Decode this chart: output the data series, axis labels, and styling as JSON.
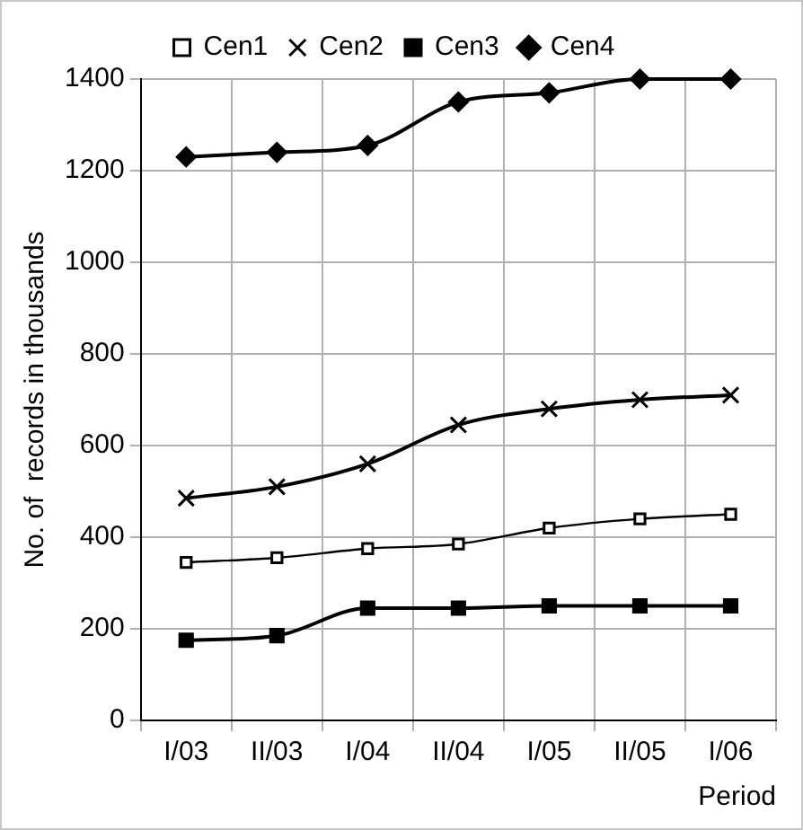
{
  "chart_data": {
    "type": "line",
    "xlabel": "Period",
    "ylabel": "No. of  records in thousands",
    "categories": [
      "I/03",
      "II/03",
      "I/04",
      "II/04",
      "I/05",
      "II/05",
      "I/06"
    ],
    "series": [
      {
        "name": "Cen1",
        "color": "#000000",
        "marker": "square",
        "values": [
          345,
          355,
          375,
          385,
          420,
          440,
          450
        ]
      },
      {
        "name": "Cen2",
        "color": "#000000",
        "marker": "cross",
        "values": [
          485,
          510,
          560,
          645,
          680,
          700,
          710
        ]
      },
      {
        "name": "Cen3",
        "color": "#000000",
        "marker": "square",
        "values": [
          175,
          185,
          245,
          245,
          250,
          250,
          250
        ]
      },
      {
        "name": "Cen4",
        "color": "#000000",
        "marker": "diamond",
        "values": [
          1230,
          1240,
          1255,
          1350,
          1370,
          1400,
          1400
        ]
      }
    ],
    "ylim": [
      0,
      1400
    ],
    "yticks": [
      0,
      200,
      400,
      600,
      800,
      1000,
      1200,
      1400
    ],
    "grid": true,
    "legend": "top",
    "line_style": "solid"
  }
}
